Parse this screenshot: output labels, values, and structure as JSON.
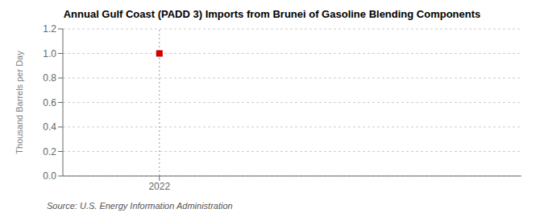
{
  "chart_data": {
    "type": "scatter",
    "title": "Annual Gulf Coast (PADD 3) Imports from Brunei of Gasoline Blending Components",
    "y_label": "Thousand Barrels per Day",
    "annotations": [
      "Source: U.S. Energy Information Administration"
    ],
    "x": [
      2022
    ],
    "values": [
      1.0
    ],
    "color": "#cc0000",
    "marker": "square",
    "xlim": [
      2021.6,
      2023.5
    ],
    "xticks": [
      2022
    ],
    "ylim": [
      0.0,
      1.2
    ],
    "yticks": [
      {
        "value": 0,
        "label": "0.0"
      },
      0.2,
      0.4,
      0.6,
      0.8,
      {
        "value": 1,
        "label": "1.0"
      },
      1.2
    ],
    "grid": true,
    "vline_x": 2022
  }
}
